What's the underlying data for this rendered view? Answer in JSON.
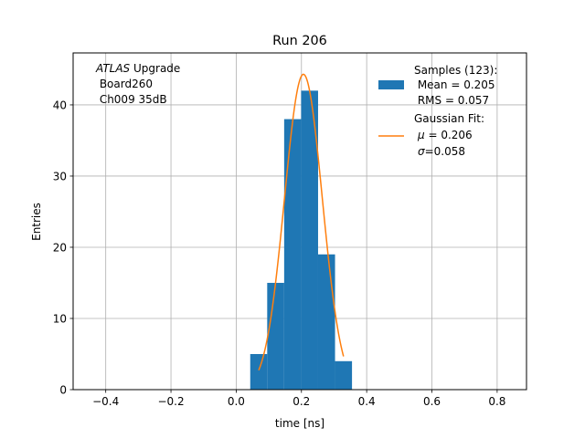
{
  "chart_data": {
    "type": "bar",
    "title": "Run 206",
    "xlabel": "time [ns]",
    "ylabel": "Entries",
    "xlim": [
      -0.5,
      0.89
    ],
    "ylim": [
      0,
      47.3
    ],
    "grid": true,
    "legend_placement": "top-right",
    "xticks": [
      -0.4,
      -0.2,
      0.0,
      0.2,
      0.4,
      0.6,
      0.8
    ],
    "xtick_labels": [
      "−0.4",
      "−0.2",
      "0.0",
      "0.2",
      "0.4",
      "0.6",
      "0.8"
    ],
    "yticks": [
      0,
      10,
      20,
      30,
      40
    ],
    "ytick_labels": [
      "0",
      "10",
      "20",
      "30",
      "40"
    ],
    "annotation": {
      "italic": "ATLAS",
      "rest": " Upgrade",
      "line2": " Board260",
      "line3": " Ch009 35dB"
    },
    "histogram": {
      "name": "Samples (123):",
      "color": "#1f77b4",
      "bins": [
        {
          "x0": 0.043,
          "x1": 0.095,
          "count": 5
        },
        {
          "x0": 0.095,
          "x1": 0.147,
          "count": 15
        },
        {
          "x0": 0.147,
          "x1": 0.199,
          "count": 38
        },
        {
          "x0": 0.199,
          "x1": 0.251,
          "count": 42
        },
        {
          "x0": 0.251,
          "x1": 0.303,
          "count": 19
        },
        {
          "x0": 0.303,
          "x1": 0.355,
          "count": 4
        }
      ],
      "stats": [
        " Mean = 0.205",
        " RMS = 0.057"
      ]
    },
    "fit": {
      "name": "Gaussian Fit:",
      "color": "#ff7f0e",
      "amplitude": 44.3,
      "mu": 0.206,
      "sigma": 0.058,
      "x_range": [
        0.069,
        0.329
      ],
      "mu_line": " = 0.206",
      "sigma_line": "=0.058"
    }
  }
}
